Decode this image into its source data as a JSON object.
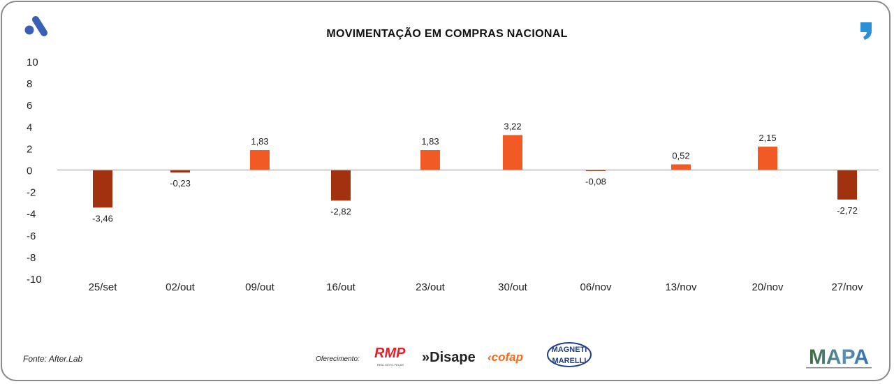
{
  "chart_data": {
    "type": "bar",
    "title": "MOVIMENTAÇÃO EM COMPRAS NACIONAL",
    "categories": [
      "25/set",
      "02/out",
      "09/out",
      "16/out",
      "23/out",
      "30/out",
      "06/nov",
      "13/nov",
      "20/nov",
      "27/nov"
    ],
    "values": [
      -3.46,
      -0.23,
      1.83,
      -2.82,
      1.83,
      3.22,
      -0.08,
      0.52,
      2.15,
      -2.72
    ],
    "value_labels": [
      "-3,46",
      "-0,23",
      "1,83",
      "-2,82",
      "1,83",
      "3,22",
      "-0,08",
      "0,52",
      "2,15",
      "-2,72"
    ],
    "ylim": [
      -10,
      10
    ],
    "yticks": [
      "10",
      "8",
      "6",
      "4",
      "2",
      "0",
      "-2",
      "-4",
      "-6",
      "-8",
      "-10"
    ],
    "xlabel": "",
    "ylabel": "",
    "grid": false,
    "colors": {
      "positive": "#f15a24",
      "negative": "#a2310f",
      "axis": "#a6a6a6"
    }
  },
  "footer": {
    "source": "Fonte: After.Lab",
    "offer_label": "Oferecimento:",
    "sponsors": [
      "RMP",
      "Disape",
      "cofap",
      "MAGNETI MARELLI"
    ],
    "brand": "MAPA"
  }
}
